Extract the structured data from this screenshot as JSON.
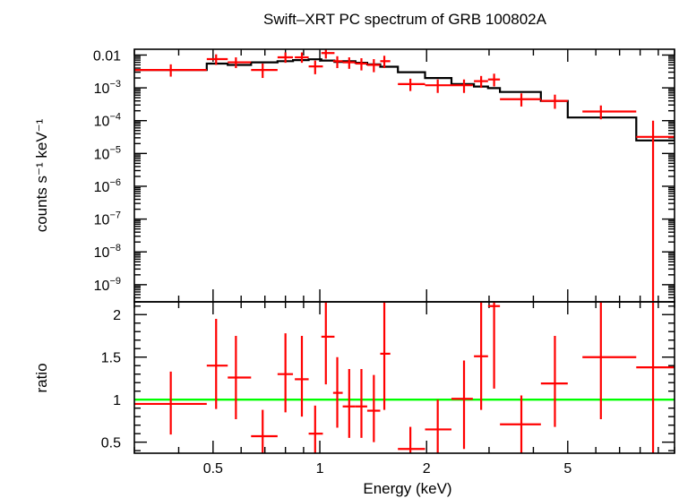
{
  "chart_data": [
    {
      "type": "scatter",
      "title": "Swift–XRT PC spectrum of GRB 100802A",
      "ylabel": "counts s⁻¹ keV⁻¹",
      "xscale": "log",
      "yscale": "log",
      "xlim": [
        0.3,
        10
      ],
      "ylim": [
        3e-10,
        0.015
      ],
      "yticks": [
        {
          "value": 0.01,
          "base": "0.01",
          "exp": ""
        },
        {
          "value": 0.001,
          "base": "10",
          "exp": "−3"
        },
        {
          "value": 0.0001,
          "base": "10",
          "exp": "−4"
        },
        {
          "value": 1e-05,
          "base": "10",
          "exp": "−5"
        },
        {
          "value": 1e-06,
          "base": "10",
          "exp": "−6"
        },
        {
          "value": 1e-07,
          "base": "10",
          "exp": "−7"
        },
        {
          "value": 1e-08,
          "base": "10",
          "exp": "−8"
        },
        {
          "value": 1e-09,
          "base": "10",
          "exp": "−9"
        }
      ],
      "series": [
        {
          "color": "#ff0000",
          "points": [
            {
              "x": 0.38,
              "xlo": 0.3,
              "xhi": 0.48,
              "y": 0.0035,
              "ylo": 0.0022,
              "yhi": 0.0052
            },
            {
              "x": 0.51,
              "xlo": 0.48,
              "xhi": 0.55,
              "y": 0.0075,
              "ylo": 0.005,
              "yhi": 0.0105
            },
            {
              "x": 0.58,
              "xlo": 0.55,
              "xhi": 0.64,
              "y": 0.006,
              "ylo": 0.004,
              "yhi": 0.0085
            },
            {
              "x": 0.69,
              "xlo": 0.64,
              "xhi": 0.76,
              "y": 0.0035,
              "ylo": 0.002,
              "yhi": 0.0055
            },
            {
              "x": 0.8,
              "xlo": 0.76,
              "xhi": 0.84,
              "y": 0.0085,
              "ylo": 0.0058,
              "yhi": 0.012
            },
            {
              "x": 0.89,
              "xlo": 0.85,
              "xhi": 0.93,
              "y": 0.0085,
              "ylo": 0.0058,
              "yhi": 0.012
            },
            {
              "x": 0.97,
              "xlo": 0.93,
              "xhi": 1.02,
              "y": 0.0045,
              "ylo": 0.0026,
              "yhi": 0.0068
            },
            {
              "x": 1.04,
              "xlo": 1.01,
              "xhi": 1.1,
              "y": 0.0115,
              "ylo": 0.0078,
              "yhi": 0.016
            },
            {
              "x": 1.12,
              "xlo": 1.09,
              "xhi": 1.16,
              "y": 0.0065,
              "ylo": 0.004,
              "yhi": 0.0092
            },
            {
              "x": 1.21,
              "xlo": 1.16,
              "xhi": 1.26,
              "y": 0.006,
              "ylo": 0.0038,
              "yhi": 0.0085
            },
            {
              "x": 1.31,
              "xlo": 1.26,
              "xhi": 1.36,
              "y": 0.0055,
              "ylo": 0.0034,
              "yhi": 0.008
            },
            {
              "x": 1.42,
              "xlo": 1.36,
              "xhi": 1.48,
              "y": 0.005,
              "ylo": 0.003,
              "yhi": 0.0075
            },
            {
              "x": 1.52,
              "xlo": 1.48,
              "xhi": 1.58,
              "y": 0.0065,
              "ylo": 0.004,
              "yhi": 0.0095
            },
            {
              "x": 1.8,
              "xlo": 1.66,
              "xhi": 1.98,
              "y": 0.0013,
              "ylo": 0.0008,
              "yhi": 0.0019
            },
            {
              "x": 2.15,
              "xlo": 1.98,
              "xhi": 2.35,
              "y": 0.0012,
              "ylo": 0.0007,
              "yhi": 0.0018
            },
            {
              "x": 2.55,
              "xlo": 2.35,
              "xhi": 2.7,
              "y": 0.0012,
              "ylo": 0.0007,
              "yhi": 0.0018
            },
            {
              "x": 2.85,
              "xlo": 2.72,
              "xhi": 2.98,
              "y": 0.0016,
              "ylo": 0.001,
              "yhi": 0.0023
            },
            {
              "x": 3.1,
              "xlo": 2.98,
              "xhi": 3.22,
              "y": 0.0018,
              "ylo": 0.0011,
              "yhi": 0.0027
            },
            {
              "x": 3.7,
              "xlo": 3.22,
              "xhi": 4.2,
              "y": 0.00045,
              "ylo": 0.00027,
              "yhi": 0.00068
            },
            {
              "x": 4.6,
              "xlo": 4.2,
              "xhi": 5.0,
              "y": 0.0004,
              "ylo": 0.00023,
              "yhi": 0.00062
            },
            {
              "x": 6.2,
              "xlo": 5.5,
              "xhi": 7.8,
              "y": 0.00019,
              "ylo": 0.00011,
              "yhi": 0.00029
            },
            {
              "x": 8.7,
              "xlo": 7.8,
              "xhi": 10.0,
              "y": 3.2e-05,
              "ylo": 3e-10,
              "yhi": 0.0001
            }
          ]
        },
        {
          "color": "#000000",
          "type": "step",
          "points": [
            {
              "xlo": 0.3,
              "xhi": 0.48,
              "y": 0.0035
            },
            {
              "xlo": 0.48,
              "xhi": 0.55,
              "y": 0.0055
            },
            {
              "xlo": 0.55,
              "xhi": 0.64,
              "y": 0.005
            },
            {
              "xlo": 0.64,
              "xhi": 0.76,
              "y": 0.006
            },
            {
              "xlo": 0.76,
              "xhi": 0.84,
              "y": 0.0065
            },
            {
              "xlo": 0.84,
              "xhi": 0.93,
              "y": 0.007
            },
            {
              "xlo": 0.93,
              "xhi": 1.01,
              "y": 0.0074
            },
            {
              "xlo": 1.01,
              "xhi": 1.1,
              "y": 0.0068
            },
            {
              "xlo": 1.1,
              "xhi": 1.16,
              "y": 0.0062
            },
            {
              "xlo": 1.16,
              "xhi": 1.26,
              "y": 0.0065
            },
            {
              "xlo": 1.26,
              "xhi": 1.36,
              "y": 0.0058
            },
            {
              "xlo": 1.36,
              "xhi": 1.48,
              "y": 0.0052
            },
            {
              "xlo": 1.48,
              "xhi": 1.66,
              "y": 0.0044
            },
            {
              "xlo": 1.66,
              "xhi": 1.98,
              "y": 0.003
            },
            {
              "xlo": 1.98,
              "xhi": 2.35,
              "y": 0.002
            },
            {
              "xlo": 2.35,
              "xhi": 2.72,
              "y": 0.0013
            },
            {
              "xlo": 2.72,
              "xhi": 2.98,
              "y": 0.0011
            },
            {
              "xlo": 2.98,
              "xhi": 3.22,
              "y": 0.00098
            },
            {
              "xlo": 3.22,
              "xhi": 4.2,
              "y": 0.00075
            },
            {
              "xlo": 4.2,
              "xhi": 5.0,
              "y": 0.0004
            },
            {
              "xlo": 5.0,
              "xhi": 7.8,
              "y": 0.000125
            },
            {
              "xlo": 7.8,
              "xhi": 10.0,
              "y": 2.5e-05
            }
          ]
        }
      ]
    },
    {
      "type": "scatter",
      "xlabel": "Energy (keV)",
      "ylabel": "ratio",
      "xscale": "log",
      "xlim": [
        0.3,
        10
      ],
      "ylim": [
        0.37,
        2.15
      ],
      "xticks": [
        {
          "value": 0.5,
          "label": "0.5"
        },
        {
          "value": 1,
          "label": "1"
        },
        {
          "value": 2,
          "label": "2"
        },
        {
          "value": 5,
          "label": "5"
        }
      ],
      "yticks": [
        {
          "value": 0.5,
          "label": "0.5"
        },
        {
          "value": 1,
          "label": "1"
        },
        {
          "value": 1.5,
          "label": "1.5"
        },
        {
          "value": 2,
          "label": "2"
        }
      ],
      "reference_line": {
        "y": 1,
        "color": "#00ff00"
      },
      "series": [
        {
          "color": "#ff0000",
          "points": [
            {
              "x": 0.38,
              "xlo": 0.3,
              "xhi": 0.48,
              "y": 0.95,
              "ylo": 0.59,
              "yhi": 1.33
            },
            {
              "x": 0.51,
              "xlo": 0.48,
              "xhi": 0.55,
              "y": 1.4,
              "ylo": 0.89,
              "yhi": 1.95
            },
            {
              "x": 0.58,
              "xlo": 0.55,
              "xhi": 0.64,
              "y": 1.26,
              "ylo": 0.77,
              "yhi": 1.75
            },
            {
              "x": 0.69,
              "xlo": 0.64,
              "xhi": 0.76,
              "y": 0.57,
              "ylo": 0.37,
              "yhi": 0.88
            },
            {
              "x": 0.8,
              "xlo": 0.76,
              "xhi": 0.84,
              "y": 1.3,
              "ylo": 0.85,
              "yhi": 1.78
            },
            {
              "x": 0.89,
              "xlo": 0.85,
              "xhi": 0.93,
              "y": 1.24,
              "ylo": 0.8,
              "yhi": 1.75
            },
            {
              "x": 0.97,
              "xlo": 0.93,
              "xhi": 1.02,
              "y": 0.6,
              "ylo": 0.37,
              "yhi": 0.93
            },
            {
              "x": 1.04,
              "xlo": 1.01,
              "xhi": 1.1,
              "y": 1.74,
              "ylo": 1.18,
              "yhi": 2.15
            },
            {
              "x": 1.12,
              "xlo": 1.09,
              "xhi": 1.16,
              "y": 1.08,
              "ylo": 0.67,
              "yhi": 1.5
            },
            {
              "x": 1.21,
              "xlo": 1.16,
              "xhi": 1.26,
              "y": 0.92,
              "ylo": 0.55,
              "yhi": 1.36
            },
            {
              "x": 1.31,
              "xlo": 1.26,
              "xhi": 1.36,
              "y": 0.92,
              "ylo": 0.55,
              "yhi": 1.36
            },
            {
              "x": 1.42,
              "xlo": 1.36,
              "xhi": 1.48,
              "y": 0.87,
              "ylo": 0.5,
              "yhi": 1.29
            },
            {
              "x": 1.52,
              "xlo": 1.48,
              "xhi": 1.58,
              "y": 1.54,
              "ylo": 0.88,
              "yhi": 2.15
            },
            {
              "x": 1.8,
              "xlo": 1.66,
              "xhi": 1.98,
              "y": 0.42,
              "ylo": 0.37,
              "yhi": 0.68
            },
            {
              "x": 2.15,
              "xlo": 1.98,
              "xhi": 2.35,
              "y": 0.65,
              "ylo": 0.37,
              "yhi": 1.0
            },
            {
              "x": 2.55,
              "xlo": 2.35,
              "xhi": 2.7,
              "y": 1.01,
              "ylo": 0.42,
              "yhi": 1.46
            },
            {
              "x": 2.85,
              "xlo": 2.72,
              "xhi": 2.98,
              "y": 1.51,
              "ylo": 0.88,
              "yhi": 2.15
            },
            {
              "x": 3.1,
              "xlo": 2.98,
              "xhi": 3.22,
              "y": 2.1,
              "ylo": 1.13,
              "yhi": 2.15
            },
            {
              "x": 3.7,
              "xlo": 3.22,
              "xhi": 4.2,
              "y": 0.71,
              "ylo": 0.37,
              "yhi": 1.05
            },
            {
              "x": 4.6,
              "xlo": 4.2,
              "xhi": 5.0,
              "y": 1.19,
              "ylo": 0.68,
              "yhi": 1.75
            },
            {
              "x": 6.2,
              "xlo": 5.5,
              "xhi": 7.8,
              "y": 1.5,
              "ylo": 0.77,
              "yhi": 2.15
            },
            {
              "x": 8.7,
              "xlo": 7.8,
              "xhi": 10.0,
              "y": 1.38,
              "ylo": 0.37,
              "yhi": 2.15
            }
          ]
        }
      ]
    }
  ]
}
